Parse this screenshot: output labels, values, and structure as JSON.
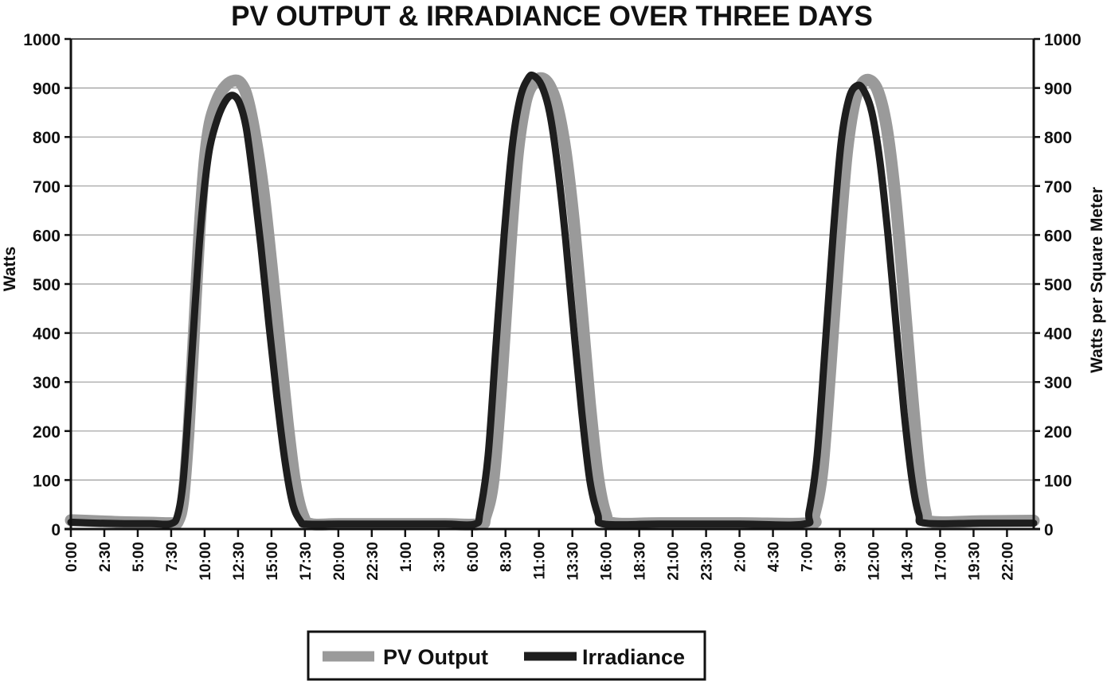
{
  "chart_data": {
    "type": "line",
    "title": "PV OUTPUT & IRRADIANCE OVER THREE DAYS",
    "ylabel_left": "Watts",
    "ylabel_right": "Watts per Square Meter",
    "xlabel": "",
    "ylim_left": [
      0,
      1000
    ],
    "ylim_right": [
      0,
      1000
    ],
    "y_ticks_left": [
      "0",
      "100",
      "200",
      "300",
      "400",
      "500",
      "600",
      "700",
      "800",
      "900",
      "1000"
    ],
    "y_ticks_right": [
      "0",
      "100",
      "200",
      "300",
      "400",
      "500",
      "600",
      "700",
      "800",
      "900",
      "1000"
    ],
    "x_tick_labels": [
      "0:00",
      "2:30",
      "5:00",
      "7:30",
      "10:00",
      "12:30",
      "15:00",
      "17:30",
      "20:00",
      "22:30",
      "1:00",
      "3:30",
      "6:00",
      "8:30",
      "11:00",
      "13:30",
      "16:00",
      "18:30",
      "21:00",
      "23:30",
      "2:00",
      "4:30",
      "7:00",
      "9:30",
      "12:00",
      "14:30",
      "17:00",
      "19:30",
      "22:00"
    ],
    "x_hours_range": [
      0,
      72
    ],
    "grid": true,
    "legend_position": "bottom",
    "series": [
      {
        "name": "PV Output",
        "color": "#9a9a9a",
        "axis": "left",
        "points": [
          [
            0,
            18
          ],
          [
            2,
            16
          ],
          [
            4,
            14
          ],
          [
            6,
            13
          ],
          [
            7.5,
            12
          ],
          [
            8,
            15
          ],
          [
            8.4,
            60
          ],
          [
            8.8,
            200
          ],
          [
            9.2,
            400
          ],
          [
            9.6,
            600
          ],
          [
            10.0,
            750
          ],
          [
            10.4,
            830
          ],
          [
            11.0,
            880
          ],
          [
            11.6,
            905
          ],
          [
            12.2,
            915
          ],
          [
            12.7,
            910
          ],
          [
            13.2,
            880
          ],
          [
            13.8,
            800
          ],
          [
            14.4,
            690
          ],
          [
            15.0,
            540
          ],
          [
            15.6,
            380
          ],
          [
            16.2,
            220
          ],
          [
            16.8,
            90
          ],
          [
            17.4,
            25
          ],
          [
            18,
            10
          ],
          [
            20,
            10
          ],
          [
            24,
            10
          ],
          [
            28,
            10
          ],
          [
            30.6,
            10
          ],
          [
            31.0,
            25
          ],
          [
            31.6,
            100
          ],
          [
            32.2,
            300
          ],
          [
            32.8,
            550
          ],
          [
            33.4,
            760
          ],
          [
            34.0,
            870
          ],
          [
            34.6,
            910
          ],
          [
            35.2,
            920
          ],
          [
            35.8,
            905
          ],
          [
            36.4,
            860
          ],
          [
            37.0,
            770
          ],
          [
            37.6,
            630
          ],
          [
            38.2,
            450
          ],
          [
            38.8,
            260
          ],
          [
            39.4,
            110
          ],
          [
            40.0,
            30
          ],
          [
            40.6,
            12
          ],
          [
            44,
            12
          ],
          [
            50,
            12
          ],
          [
            55.2,
            12
          ],
          [
            55.6,
            30
          ],
          [
            56.2,
            120
          ],
          [
            56.8,
            330
          ],
          [
            57.4,
            560
          ],
          [
            58.0,
            760
          ],
          [
            58.6,
            870
          ],
          [
            59.2,
            910
          ],
          [
            59.8,
            915
          ],
          [
            60.4,
            890
          ],
          [
            61.0,
            820
          ],
          [
            61.6,
            690
          ],
          [
            62.2,
            510
          ],
          [
            62.8,
            310
          ],
          [
            63.4,
            130
          ],
          [
            63.9,
            35
          ],
          [
            64.4,
            15
          ],
          [
            68,
            16
          ],
          [
            72,
            17
          ]
        ]
      },
      {
        "name": "Irradiance",
        "color": "#1e1e1e",
        "axis": "right",
        "points": [
          [
            0,
            14
          ],
          [
            2,
            12
          ],
          [
            4,
            11
          ],
          [
            6,
            11
          ],
          [
            7.5,
            11
          ],
          [
            8.0,
            30
          ],
          [
            8.4,
            100
          ],
          [
            8.8,
            250
          ],
          [
            9.2,
            420
          ],
          [
            9.6,
            580
          ],
          [
            10.0,
            700
          ],
          [
            10.4,
            780
          ],
          [
            11.0,
            840
          ],
          [
            11.6,
            875
          ],
          [
            12.1,
            885
          ],
          [
            12.6,
            870
          ],
          [
            13.1,
            820
          ],
          [
            13.6,
            720
          ],
          [
            14.2,
            580
          ],
          [
            14.8,
            420
          ],
          [
            15.4,
            270
          ],
          [
            16.0,
            140
          ],
          [
            16.6,
            50
          ],
          [
            17.2,
            15
          ],
          [
            17.6,
            10
          ],
          [
            20,
            10
          ],
          [
            24,
            10
          ],
          [
            28,
            10
          ],
          [
            30.2,
            10
          ],
          [
            30.6,
            35
          ],
          [
            31.2,
            150
          ],
          [
            31.8,
            380
          ],
          [
            32.4,
            600
          ],
          [
            33.0,
            780
          ],
          [
            33.6,
            880
          ],
          [
            34.2,
            920
          ],
          [
            34.6,
            925
          ],
          [
            35.2,
            905
          ],
          [
            35.8,
            850
          ],
          [
            36.4,
            740
          ],
          [
            37.0,
            590
          ],
          [
            37.6,
            410
          ],
          [
            38.2,
            240
          ],
          [
            38.8,
            100
          ],
          [
            39.4,
            30
          ],
          [
            39.9,
            10
          ],
          [
            44,
            10
          ],
          [
            50,
            10
          ],
          [
            54.8,
            10
          ],
          [
            55.2,
            35
          ],
          [
            55.8,
            150
          ],
          [
            56.4,
            370
          ],
          [
            57.0,
            600
          ],
          [
            57.6,
            790
          ],
          [
            58.2,
            880
          ],
          [
            58.8,
            905
          ],
          [
            59.3,
            895
          ],
          [
            59.9,
            850
          ],
          [
            60.5,
            750
          ],
          [
            61.1,
            600
          ],
          [
            61.7,
            420
          ],
          [
            62.3,
            240
          ],
          [
            62.9,
            100
          ],
          [
            63.4,
            30
          ],
          [
            63.9,
            12
          ],
          [
            68,
            12
          ],
          [
            72,
            12
          ]
        ]
      }
    ]
  }
}
